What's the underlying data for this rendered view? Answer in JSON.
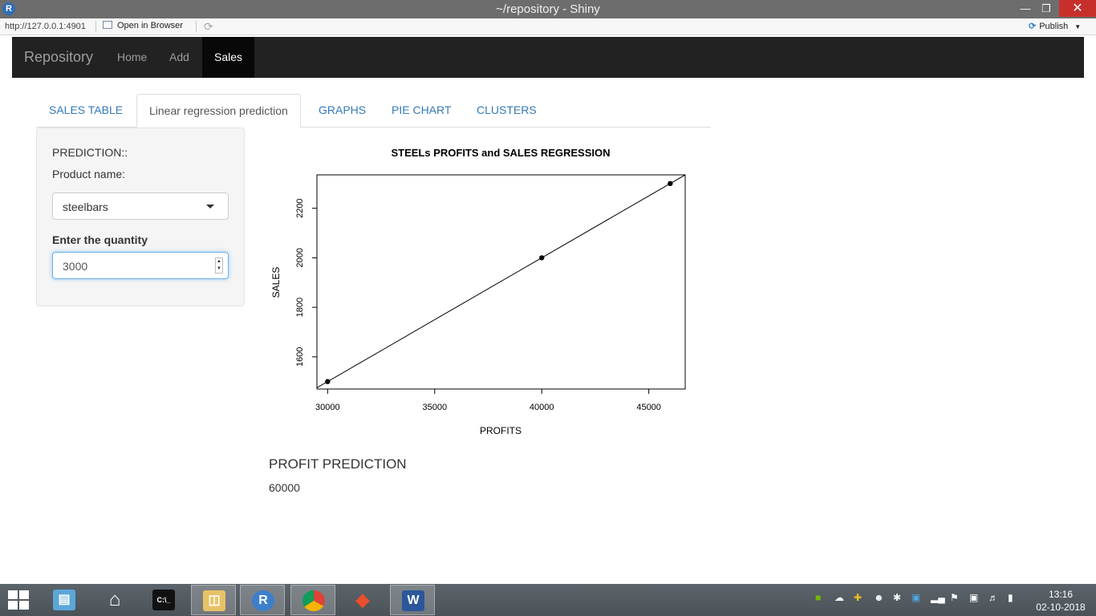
{
  "window": {
    "title": "~/repository - Shiny",
    "icon": "r-app-icon"
  },
  "toolbar": {
    "url": "http://127.0.0.1:4901",
    "open_browser": "Open in Browser",
    "publish": "Publish"
  },
  "navbar": {
    "brand": "Repository",
    "items": [
      {
        "label": "Home",
        "active": false
      },
      {
        "label": "Add",
        "active": false
      },
      {
        "label": "Sales",
        "active": true
      }
    ]
  },
  "tabs": [
    {
      "label": "SALES TABLE",
      "active": false
    },
    {
      "label": "Linear regression prediction",
      "active": true
    },
    {
      "label": "GRAPHS",
      "active": false
    },
    {
      "label": "PIE CHART",
      "active": false
    },
    {
      "label": "CLUSTERS",
      "active": false
    }
  ],
  "sidebar": {
    "heading": "PREDICTION::",
    "product_label": "Product name:",
    "product_value": "steelbars",
    "quantity_label": "Enter the quantity",
    "quantity_value": "3000"
  },
  "chart_data": {
    "type": "scatter",
    "title": "STEELs PROFITS and SALES REGRESSION",
    "xlabel": "PROFITS",
    "ylabel": "SALES",
    "xlim": [
      29500,
      46700
    ],
    "ylim": [
      1470,
      2335
    ],
    "x_ticks": [
      30000,
      35000,
      40000,
      45000
    ],
    "y_ticks": [
      1600,
      1800,
      2000,
      2200
    ],
    "points": [
      {
        "x": 30000,
        "y": 1500
      },
      {
        "x": 40000,
        "y": 2000
      },
      {
        "x": 46000,
        "y": 2300
      }
    ],
    "regression_line": {
      "intercept": 0,
      "slope": 0.05
    },
    "grid": false
  },
  "output": {
    "title": "PROFIT PREDICTION",
    "value": "60000"
  },
  "taskbar": {
    "time": "13:16",
    "date": "02-10-2018",
    "apps": [
      "file-explorer-icon",
      "home-icon",
      "cmd-icon",
      "folder-icon",
      "r-icon",
      "chrome-icon",
      "git-icon",
      "word-icon"
    ]
  },
  "colors": {
    "navbar_bg": "#222222",
    "navbar_active": "#080808",
    "tab_link": "#337ab7",
    "close_button": "#c7302a"
  }
}
